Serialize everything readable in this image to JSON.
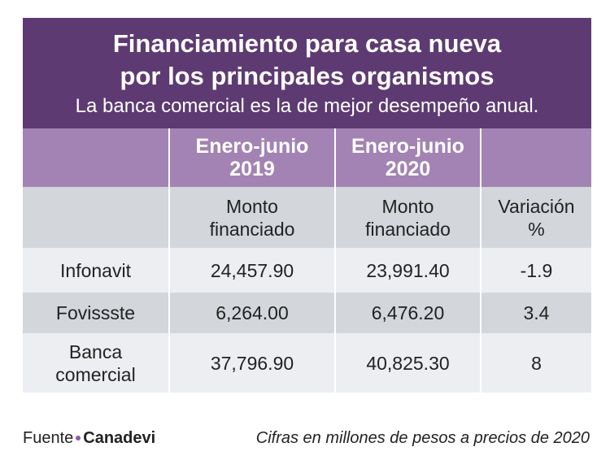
{
  "header": {
    "title": [
      "Financiamiento para casa nueva",
      "por los principales organismos"
    ],
    "subtitle": "La banca comercial es la de mejor desempeño anual."
  },
  "table": {
    "periods": [
      [
        "Enero-junio",
        "2019"
      ],
      [
        "Enero-junio",
        "2020"
      ]
    ],
    "columns": [
      [
        "Monto",
        "financiado"
      ],
      [
        "Monto",
        "financiado"
      ],
      [
        "Variación",
        "%"
      ]
    ],
    "rows": [
      {
        "label": [
          "Infonavit"
        ],
        "cells": [
          "24,457.90",
          "23,991.40",
          "-1.9"
        ]
      },
      {
        "label": [
          "Fovissste"
        ],
        "cells": [
          "6,264.00",
          "6,476.20",
          "3.4"
        ]
      },
      {
        "label": [
          "Banca",
          "comercial"
        ],
        "cells": [
          "37,796.90",
          "40,825.30",
          "8"
        ]
      }
    ]
  },
  "footer": {
    "source_label": "Fuente",
    "source": "Canadevi",
    "note": "Cifras en millones de pesos a precios de 2020"
  }
}
